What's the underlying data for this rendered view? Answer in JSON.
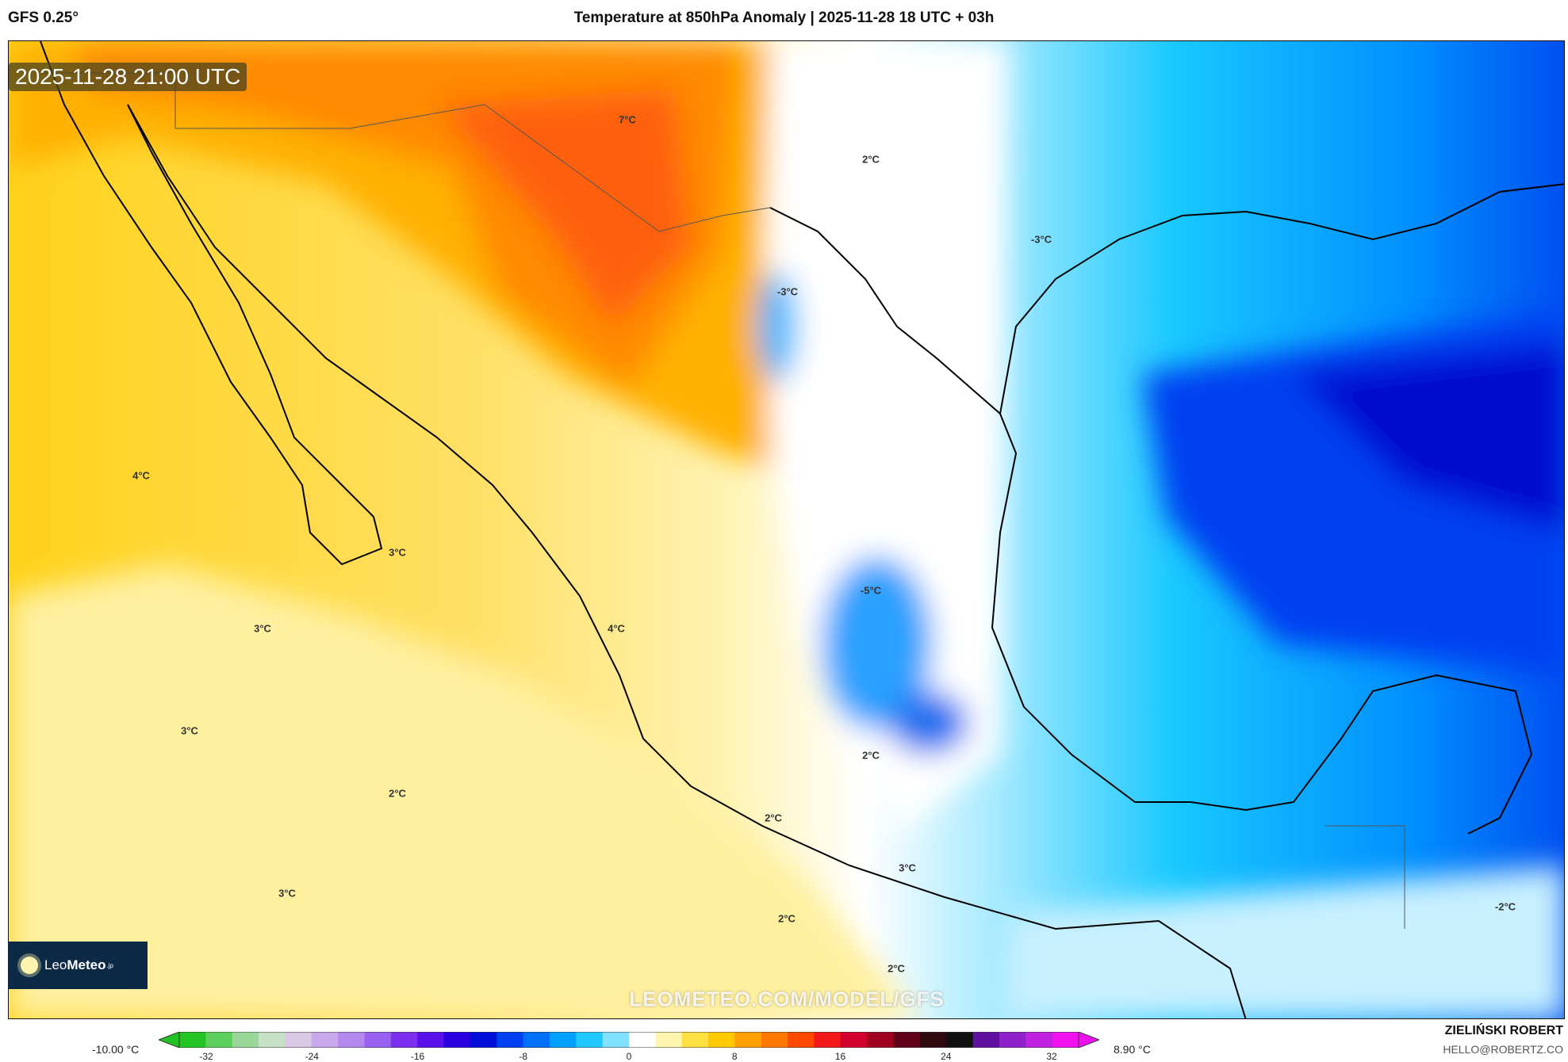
{
  "header": {
    "model": "GFS 0.25°",
    "title": "Temperature at 850hPa Anomaly | 2025-11-28 18 UTC + 03h"
  },
  "valid_time": "2025-11-28 21:00 UTC",
  "contour_labels": [
    "7°C",
    "2°C",
    "-3°C",
    "-3°C",
    "4°C",
    "3°C",
    "-5°C",
    "3°C",
    "4°C",
    "3°C",
    "2°C",
    "2°C",
    "2°C",
    "3°C",
    "3°C",
    "-2°C",
    "2°C",
    "2°C"
  ],
  "watermark": "LEOMETEO.COM/MODEL/GFS",
  "logo": {
    "main": "Leo",
    "bold": "Meteo",
    "suffix": ".jp"
  },
  "colorbar": {
    "min_label": "-10.00 °C",
    "max_label": "8.90 °C",
    "ticks": [
      "-32",
      "-24",
      "-16",
      "-8",
      "0",
      "8",
      "16",
      "24",
      "32"
    ],
    "colors": [
      "#22c322",
      "#5ccf5c",
      "#9ad79a",
      "#c6e1c6",
      "#d8c8e6",
      "#c8a8ea",
      "#b488ee",
      "#9a60f0",
      "#7a30ee",
      "#5a10e8",
      "#2a00e0",
      "#0010d8",
      "#0040f0",
      "#0070f8",
      "#00a0ff",
      "#20c8ff",
      "#80e0ff",
      "#ffffff",
      "#fff4b0",
      "#ffe040",
      "#ffc800",
      "#ffa000",
      "#ff7a00",
      "#ff4800",
      "#f01818",
      "#d0002a",
      "#a00020",
      "#60001a",
      "#300810",
      "#101010",
      "#6010a0",
      "#9020c8",
      "#c020e0",
      "#f010f0"
    ]
  },
  "credit": {
    "author": "ZIELIŃSKI ROBERT",
    "email": "HELLO@ROBERTZ.CO"
  },
  "colors": {
    "warm": "#ffd21a",
    "orange": "#ff8a00",
    "cold": "#00c8ff",
    "deep_cold": "#0020e0"
  }
}
